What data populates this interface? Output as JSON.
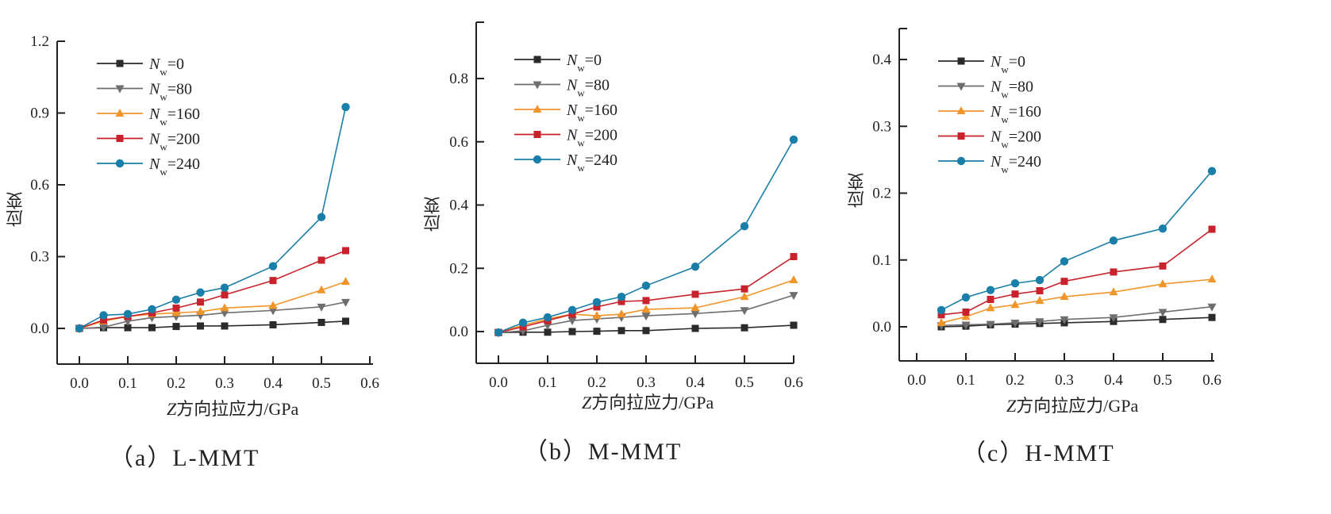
{
  "chart_data": [
    {
      "id": "a",
      "type": "line",
      "caption": "（a）L-MMT",
      "xlabel_var": "Z",
      "xlabel_text": "方向拉应力/GPa",
      "ylabel": "应变",
      "xlim": [
        -0.04,
        0.6
      ],
      "ylim": [
        -0.15,
        1.2
      ],
      "xticks": [
        0.0,
        0.1,
        0.2,
        0.3,
        0.4,
        0.5,
        0.6
      ],
      "xtick_labels": [
        "0.0",
        "0.1",
        "0.2",
        "0.3",
        "0.4",
        "0.5",
        "0.6"
      ],
      "yticks": [
        0.0,
        0.3,
        0.6,
        0.9,
        1.2
      ],
      "ytick_labels": [
        "0.0",
        "0.3",
        "0.6",
        "0.9",
        "1.2"
      ],
      "legend_position": "top-left",
      "x": [
        0.0,
        0.05,
        0.1,
        0.15,
        0.2,
        0.25,
        0.3,
        0.4,
        0.5,
        0.55
      ],
      "series": [
        {
          "name": "Nw=0",
          "label_main": "N",
          "label_sub": "w",
          "label_val": "=0",
          "marker": "square",
          "color": "#2b2b2b",
          "values": [
            0.0,
            0.003,
            0.003,
            0.003,
            0.008,
            0.01,
            0.01,
            0.015,
            0.025,
            0.03
          ]
        },
        {
          "name": "Nw=80",
          "label_main": "N",
          "label_sub": "w",
          "label_val": "=80",
          "marker": "triangle-down",
          "color": "#6e6e6e",
          "values": [
            0.0,
            0.005,
            0.03,
            0.045,
            0.05,
            0.055,
            0.065,
            0.075,
            0.09,
            0.11
          ]
        },
        {
          "name": "Nw=160",
          "label_main": "N",
          "label_sub": "w",
          "label_val": "=160",
          "marker": "triangle-up",
          "color": "#f0952a",
          "values": [
            0.0,
            0.03,
            0.05,
            0.06,
            0.065,
            0.07,
            0.085,
            0.095,
            0.16,
            0.195
          ]
        },
        {
          "name": "Nw=200",
          "label_main": "N",
          "label_sub": "w",
          "label_val": "=200",
          "marker": "square",
          "color": "#c8232c",
          "values": [
            0.0,
            0.035,
            0.05,
            0.065,
            0.085,
            0.11,
            0.14,
            0.2,
            0.285,
            0.325
          ]
        },
        {
          "name": "Nw=240",
          "label_main": "N",
          "label_sub": "w",
          "label_val": "=240",
          "marker": "circle",
          "color": "#1a7fa8",
          "values": [
            0.0,
            0.055,
            0.06,
            0.08,
            0.12,
            0.15,
            0.17,
            0.26,
            0.465,
            0.925
          ]
        }
      ]
    },
    {
      "id": "b",
      "type": "line",
      "caption": "（b）M-MMT",
      "xlabel_var": "Z",
      "xlabel_text": "方向拉应力/GPa",
      "ylabel": "应变",
      "xlim": [
        -0.04,
        0.62
      ],
      "ylim": [
        -0.1,
        0.98
      ],
      "xticks": [
        0.0,
        0.1,
        0.2,
        0.3,
        0.4,
        0.5,
        0.6
      ],
      "xtick_labels": [
        "0.0",
        "0.1",
        "0.2",
        "0.3",
        "0.4",
        "0.5",
        "0.6"
      ],
      "yticks": [
        0.0,
        0.2,
        0.4,
        0.6,
        0.8
      ],
      "ytick_labels": [
        "0.0",
        "0.2",
        "0.4",
        "0.6",
        "0.8"
      ],
      "legend_position": "top-left",
      "x": [
        0.0,
        0.05,
        0.1,
        0.15,
        0.2,
        0.25,
        0.3,
        0.4,
        0.5,
        0.6
      ],
      "series": [
        {
          "name": "Nw=0",
          "label_main": "N",
          "label_sub": "w",
          "label_val": "=0",
          "marker": "square",
          "color": "#2b2b2b",
          "values": [
            -0.003,
            -0.002,
            -0.002,
            0.0,
            0.001,
            0.003,
            0.003,
            0.01,
            0.012,
            0.02
          ]
        },
        {
          "name": "Nw=80",
          "label_main": "N",
          "label_sub": "w",
          "label_val": "=80",
          "marker": "triangle-down",
          "color": "#6e6e6e",
          "values": [
            -0.003,
            0.002,
            0.02,
            0.035,
            0.04,
            0.045,
            0.05,
            0.057,
            0.067,
            0.115
          ]
        },
        {
          "name": "Nw=160",
          "label_main": "N",
          "label_sub": "w",
          "label_val": "=160",
          "marker": "triangle-up",
          "color": "#f0952a",
          "values": [
            -0.003,
            0.02,
            0.04,
            0.055,
            0.05,
            0.055,
            0.07,
            0.075,
            0.11,
            0.163
          ]
        },
        {
          "name": "Nw=200",
          "label_main": "N",
          "label_sub": "w",
          "label_val": "=200",
          "marker": "square",
          "color": "#c8232c",
          "values": [
            -0.003,
            0.015,
            0.035,
            0.055,
            0.078,
            0.095,
            0.098,
            0.118,
            0.135,
            0.237
          ]
        },
        {
          "name": "Nw=240",
          "label_main": "N",
          "label_sub": "w",
          "label_val": "=240",
          "marker": "circle",
          "color": "#1a7fa8",
          "values": [
            -0.003,
            0.028,
            0.045,
            0.068,
            0.093,
            0.11,
            0.145,
            0.205,
            0.333,
            0.607
          ]
        }
      ]
    },
    {
      "id": "c",
      "type": "line",
      "caption": "（c）H-MMT",
      "xlabel_var": "Z",
      "xlabel_text": "方向拉应力/GPa",
      "ylabel": "应变",
      "xlim": [
        -0.04,
        0.62
      ],
      "ylim": [
        -0.05,
        0.45
      ],
      "xticks": [
        0.0,
        0.1,
        0.2,
        0.3,
        0.4,
        0.5,
        0.6
      ],
      "xtick_labels": [
        "0.0",
        "0.1",
        "0.2",
        "0.3",
        "0.4",
        "0.5",
        "0.6"
      ],
      "yticks": [
        0.0,
        0.1,
        0.2,
        0.3,
        0.4
      ],
      "ytick_labels": [
        "0.0",
        "0.1",
        "0.2",
        "0.3",
        "0.4"
      ],
      "legend_position": "top-left",
      "x": [
        0.05,
        0.1,
        0.15,
        0.2,
        0.25,
        0.3,
        0.4,
        0.5,
        0.6
      ],
      "series": [
        {
          "name": "Nw=0",
          "label_main": "N",
          "label_sub": "w",
          "label_val": "=0",
          "marker": "square",
          "color": "#2b2b2b",
          "values": [
            0.0,
            0.001,
            0.003,
            0.004,
            0.005,
            0.006,
            0.008,
            0.011,
            0.014
          ]
        },
        {
          "name": "Nw=80",
          "label_main": "N",
          "label_sub": "w",
          "label_val": "=80",
          "marker": "triangle-down",
          "color": "#6e6e6e",
          "values": [
            0.002,
            0.003,
            0.004,
            0.006,
            0.008,
            0.011,
            0.014,
            0.022,
            0.03
          ]
        },
        {
          "name": "Nw=160",
          "label_main": "N",
          "label_sub": "w",
          "label_val": "=160",
          "marker": "triangle-up",
          "color": "#f0952a",
          "values": [
            0.006,
            0.015,
            0.028,
            0.033,
            0.039,
            0.045,
            0.052,
            0.064,
            0.071
          ]
        },
        {
          "name": "Nw=200",
          "label_main": "N",
          "label_sub": "w",
          "label_val": "=200",
          "marker": "square",
          "color": "#c8232c",
          "values": [
            0.018,
            0.022,
            0.041,
            0.049,
            0.054,
            0.068,
            0.082,
            0.091,
            0.146
          ]
        },
        {
          "name": "Nw=240",
          "label_main": "N",
          "label_sub": "w",
          "label_val": "=240",
          "marker": "circle",
          "color": "#1a7fa8",
          "values": [
            0.025,
            0.044,
            0.055,
            0.065,
            0.07,
            0.098,
            0.129,
            0.147,
            0.233
          ]
        }
      ]
    }
  ]
}
